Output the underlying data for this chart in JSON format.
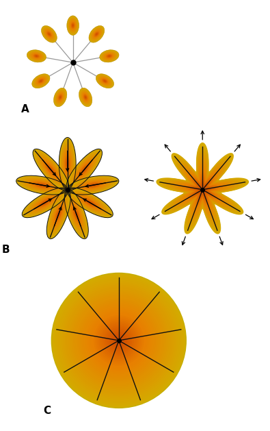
{
  "n_tines": 9,
  "bg_color": "#ffffff",
  "tine_angles_deg": [
    90,
    50,
    10,
    330,
    290,
    250,
    210,
    170,
    130
  ],
  "label_A": "A",
  "label_B": "B",
  "label_C": "C",
  "orange_inner": [
    0.8,
    0.27,
    0.0
  ],
  "orange_mid": [
    0.91,
    0.5,
    0.0
  ],
  "yellow_outer": [
    0.83,
    0.67,
    0.0
  ],
  "tine_color_A": "#999999",
  "tine_color_BC": "#111111"
}
